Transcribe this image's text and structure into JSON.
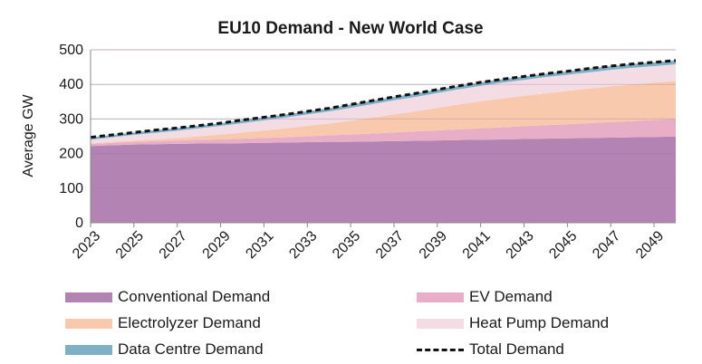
{
  "chart_data": {
    "type": "area",
    "title": "EU10 Demand - New World Case",
    "xlabel": "",
    "ylabel": "Average GW",
    "ylim": [
      0,
      500
    ],
    "yticks": [
      0,
      100,
      200,
      300,
      400,
      500
    ],
    "xlim": [
      2023,
      2050
    ],
    "xticks": [
      2023,
      2025,
      2027,
      2029,
      2031,
      2033,
      2035,
      2037,
      2039,
      2041,
      2043,
      2045,
      2047,
      2049
    ],
    "grid": true,
    "stacked": true,
    "legend_position": "bottom",
    "x": [
      2023,
      2024,
      2025,
      2026,
      2027,
      2028,
      2029,
      2030,
      2031,
      2032,
      2033,
      2034,
      2035,
      2036,
      2037,
      2038,
      2039,
      2040,
      2041,
      2042,
      2043,
      2044,
      2045,
      2046,
      2047,
      2048,
      2049,
      2050
    ],
    "series": [
      {
        "name": "Conventional Demand",
        "color": "#b384b3",
        "values": [
          222,
          224,
          226,
          227,
          228,
          229,
          229,
          230,
          231,
          232,
          233,
          234,
          234,
          235,
          236,
          237,
          238,
          239,
          240,
          241,
          242,
          243,
          244,
          245,
          246,
          247,
          248,
          249
        ]
      },
      {
        "name": "EV Demand",
        "color": "#e8aec8",
        "values": [
          6,
          7,
          8,
          9,
          10,
          11,
          12,
          13,
          14,
          15,
          17,
          19,
          21,
          23,
          25,
          27,
          29,
          31,
          33,
          35,
          37,
          39,
          41,
          43,
          45,
          47,
          49,
          51
        ]
      },
      {
        "name": "Electrolyzer Demand",
        "color": "#f9c9ad",
        "values": [
          2,
          3,
          4,
          5,
          7,
          10,
          14,
          18,
          22,
          26,
          30,
          34,
          40,
          46,
          52,
          58,
          65,
          72,
          78,
          83,
          88,
          92,
          96,
          100,
          103,
          106,
          108,
          110
        ]
      },
      {
        "name": "Heat Pump Demand",
        "color": "#f4dce4",
        "values": [
          10,
          13,
          16,
          19,
          21,
          23,
          25,
          27,
          29,
          31,
          33,
          35,
          37,
          39,
          41,
          42,
          43,
          44,
          45,
          46,
          46,
          47,
          47,
          47,
          48,
          48,
          48,
          48
        ]
      },
      {
        "name": "Data Centre Demand",
        "color": "#7eb0c8",
        "values": [
          7,
          7,
          7,
          8,
          8,
          8,
          8,
          9,
          9,
          9,
          9,
          9,
          10,
          10,
          10,
          10,
          10,
          10,
          10,
          10,
          10,
          10,
          10,
          11,
          11,
          11,
          11,
          11
        ]
      }
    ],
    "total": {
      "name": "Total Demand",
      "style": "dashed",
      "color": "#111111",
      "values": [
        247,
        254,
        261,
        268,
        274,
        281,
        288,
        297,
        305,
        313,
        322,
        331,
        342,
        353,
        364,
        374,
        385,
        396,
        406,
        415,
        423,
        431,
        438,
        446,
        453,
        459,
        464,
        469
      ]
    }
  },
  "legend": {
    "items": [
      {
        "label": "Conventional Demand",
        "kind": "swatch",
        "color": "#b384b3"
      },
      {
        "label": "EV Demand",
        "kind": "swatch",
        "color": "#e8aec8"
      },
      {
        "label": "Electrolyzer Demand",
        "kind": "swatch",
        "color": "#f9c9ad"
      },
      {
        "label": "Heat Pump Demand",
        "kind": "swatch",
        "color": "#f4dce4"
      },
      {
        "label": "Data Centre Demand",
        "kind": "swatch",
        "color": "#7eb0c8"
      },
      {
        "label": "Total Demand",
        "kind": "dash",
        "color": "#111111"
      }
    ]
  }
}
